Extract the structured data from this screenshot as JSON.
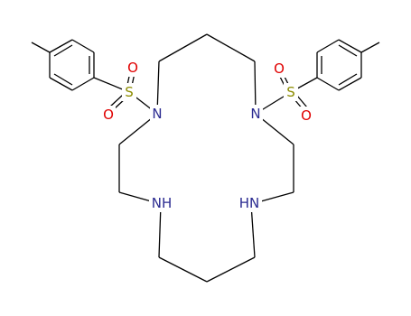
{
  "molecule": {
    "atoms": [
      "S",
      "O",
      "O",
      "N",
      "N",
      "S",
      "O",
      "O",
      "NH",
      "HN"
    ]
  }
}
